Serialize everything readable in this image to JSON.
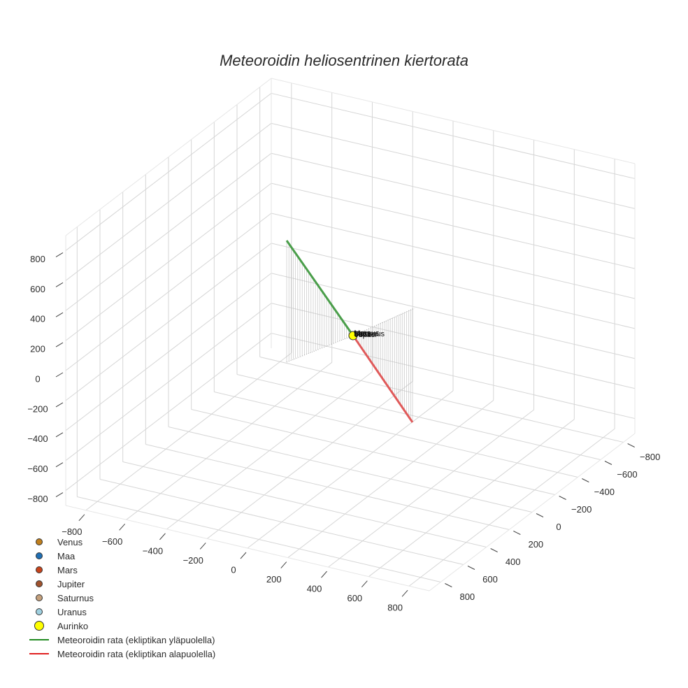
{
  "chart_data": {
    "type": "scatter3d",
    "title": "Meteoroidin heliosentrinen kiertorata",
    "axes": {
      "x": {
        "label": "",
        "range": [
          -900,
          900
        ],
        "ticks": [
          -800,
          -600,
          -400,
          -200,
          0,
          200,
          400,
          600,
          800
        ]
      },
      "y": {
        "label": "",
        "range": [
          -900,
          900
        ],
        "ticks": [
          -800,
          -600,
          -400,
          -200,
          0,
          200,
          400,
          600,
          800
        ]
      },
      "z": {
        "label": "",
        "range": [
          -900,
          900
        ],
        "ticks": [
          -800,
          -600,
          -400,
          -200,
          0,
          200,
          400,
          600,
          800
        ]
      }
    },
    "grid": true,
    "legend_position": "bottom-left",
    "series": [
      {
        "name": "Venus",
        "type": "marker",
        "color": "#c07f1d",
        "x": 0,
        "y": 0,
        "z": 0,
        "text_label": "Venus"
      },
      {
        "name": "Maa",
        "type": "marker",
        "color": "#1f6fb4",
        "x": 0,
        "y": 0,
        "z": 0,
        "text_label": "Maa"
      },
      {
        "name": "Mars",
        "type": "marker",
        "color": "#c8431b",
        "x": 0,
        "y": 0,
        "z": 0,
        "text_label": "Mars"
      },
      {
        "name": "Jupiter",
        "type": "marker",
        "color": "#a0522d",
        "x": 0,
        "y": 0,
        "z": 0,
        "text_label": "Jupiter"
      },
      {
        "name": "Saturnus",
        "type": "marker",
        "color": "#c4a07c",
        "x": 0,
        "y": 0,
        "z": 0,
        "text_label": "Saturnus"
      },
      {
        "name": "Uranus",
        "type": "marker",
        "color": "#9fd0e0",
        "x": 0,
        "y": 0,
        "z": 0,
        "text_label": "Uranus"
      },
      {
        "name": "Aurinko",
        "type": "marker",
        "color": "#ffff00",
        "x": 0,
        "y": 0,
        "z": 0,
        "size": "large"
      },
      {
        "name": "Meteoroidin rata (ekliptikan yläpuolella)",
        "type": "line",
        "color": "#4a9e4a",
        "x": [
          -700,
          0
        ],
        "y": [
          0,
          0
        ],
        "z": [
          650,
          0
        ]
      },
      {
        "name": "Meteoroidin rata (ekliptikan alapuolella)",
        "type": "line",
        "color": "#e05050",
        "x": [
          0,
          450
        ],
        "y": [
          0,
          0
        ],
        "z": [
          0,
          -650
        ]
      }
    ],
    "annotations": [
      "Vertical drop lines from trajectory to ecliptic plane (z=0)"
    ]
  },
  "title": "Meteoroidin heliosentrinen kiertorata",
  "z_ticks": [
    "800",
    "600",
    "400",
    "200",
    "0",
    "−200",
    "−400",
    "−600",
    "−800"
  ],
  "x_ticks": [
    "−800",
    "−600",
    "−400",
    "−200",
    "0",
    "200",
    "400",
    "600",
    "800"
  ],
  "y_ticks": [
    "−800",
    "−600",
    "−400",
    "−200",
    "0",
    "200",
    "400",
    "600",
    "800"
  ],
  "legend": [
    {
      "label": "Venus",
      "kind": "dot",
      "color": "#c07f1d"
    },
    {
      "label": "Maa",
      "kind": "dot",
      "color": "#1f6fb4"
    },
    {
      "label": "Mars",
      "kind": "dot",
      "color": "#c8431b"
    },
    {
      "label": "Jupiter",
      "kind": "dot",
      "color": "#a0522d"
    },
    {
      "label": "Saturnus",
      "kind": "dot",
      "color": "#c4a07c"
    },
    {
      "label": "Uranus",
      "kind": "dot",
      "color": "#9fd0e0"
    },
    {
      "label": "Aurinko",
      "kind": "sun",
      "color": "#ffff00"
    },
    {
      "label": "Meteoroidin rata (ekliptikan yläpuolella)",
      "kind": "line",
      "color": "#228b22"
    },
    {
      "label": "Meteoroidin rata (ekliptikan alapuolella)",
      "kind": "line",
      "color": "#e02020"
    }
  ],
  "planet_labels": [
    "Venus",
    "Maa",
    "Mars",
    "Jupiter",
    "Saturnus",
    "Uranus"
  ]
}
